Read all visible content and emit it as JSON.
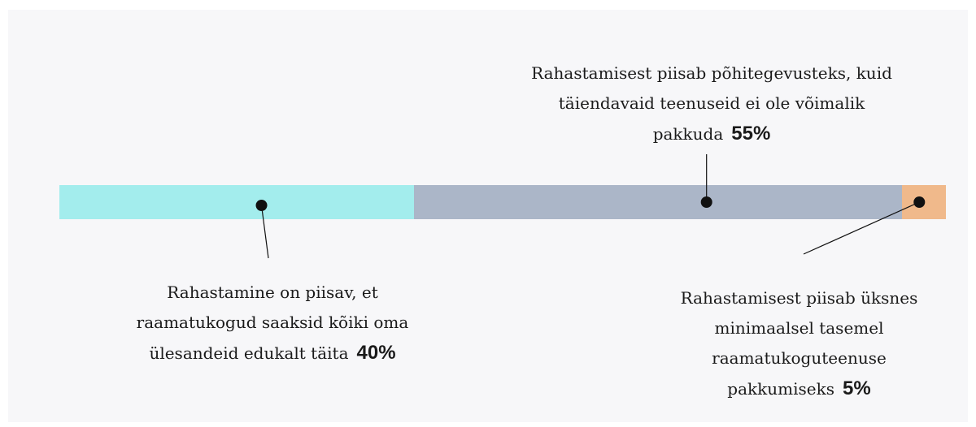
{
  "chart_data": {
    "type": "stacked-bar",
    "orientation": "horizontal",
    "series": [
      {
        "name": "Rahastamine on piisav, et raamatukogud saaksid kõiki oma ülesandeid edukalt täita",
        "color": "#a3eded",
        "values": [
          40
        ],
        "value_labels": [
          "40%"
        ]
      },
      {
        "name": "Rahastamisest piisab põhitegevusteks, kuid täiendavaid teenuseid ei ole võimalik pakkuda",
        "color": "#abb6c8",
        "values": [
          55
        ],
        "value_labels": [
          "55%"
        ]
      },
      {
        "name": "Rahastamisest piisab üksnes minimaalsel tasemel raamatukoguteenuse pakkumiseks",
        "color": "#f0b98b",
        "values": [
          5
        ],
        "value_labels": [
          "5%"
        ]
      }
    ]
  }
}
